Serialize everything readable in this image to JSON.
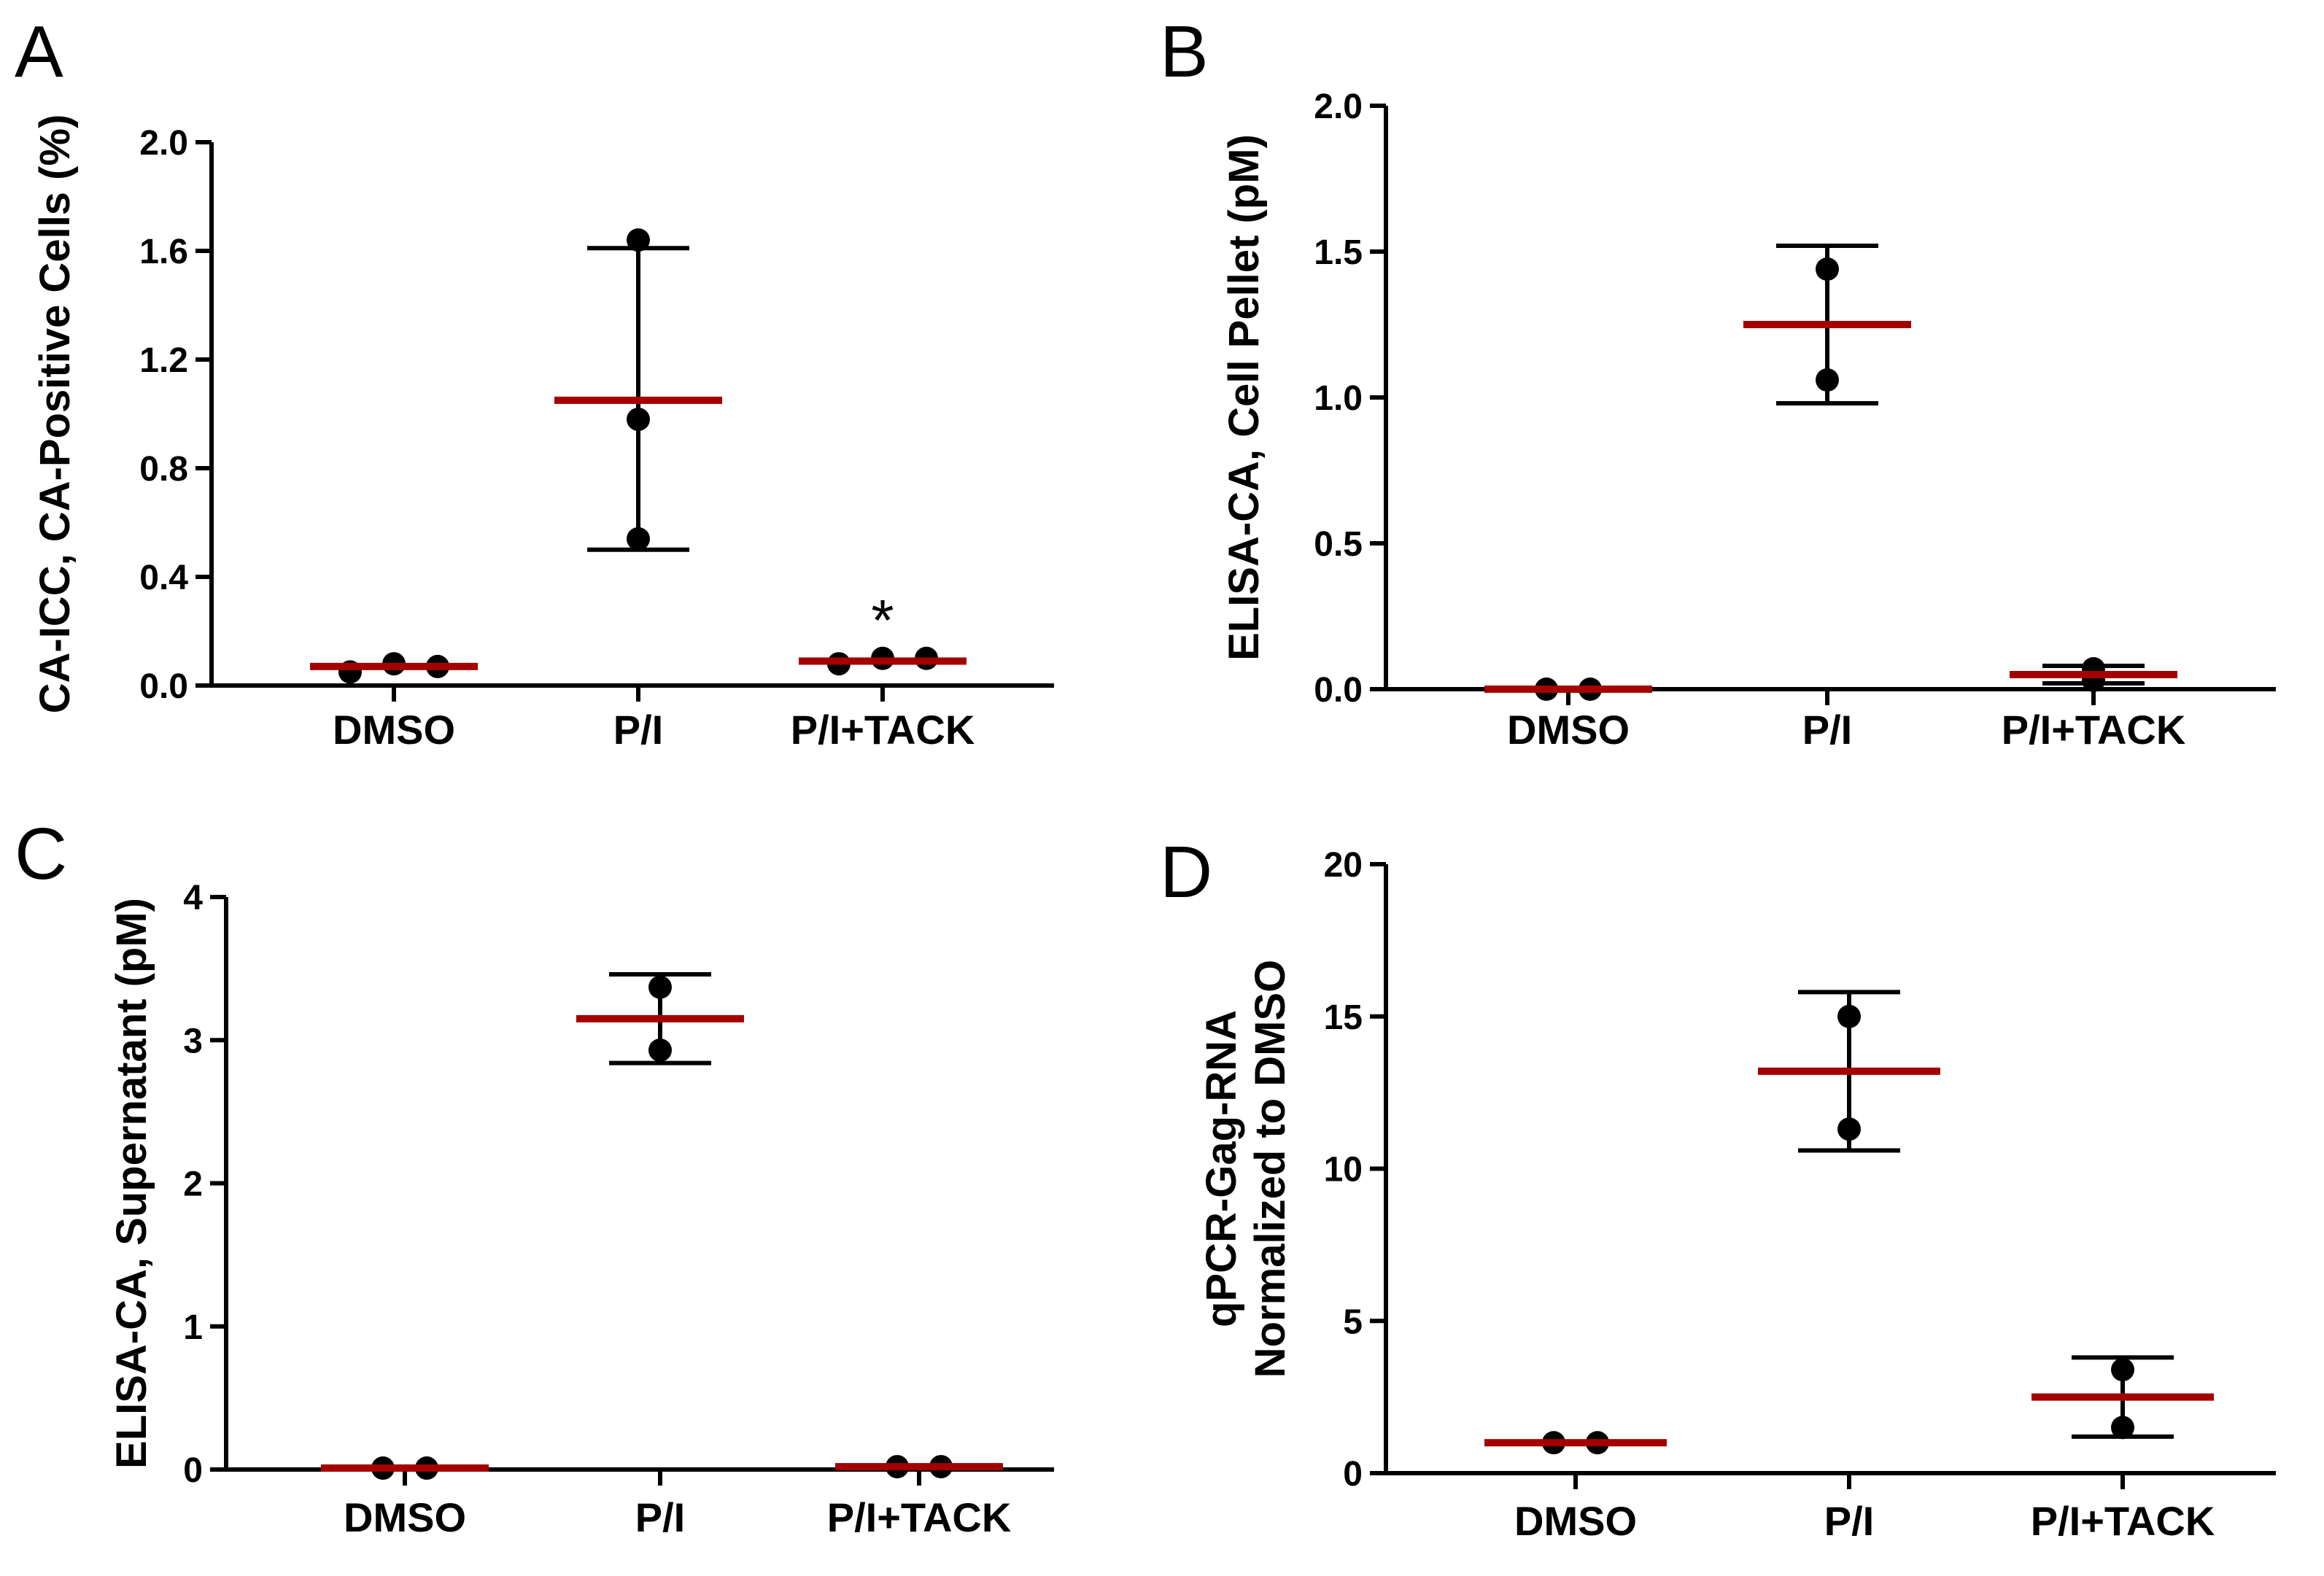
{
  "chart_data": [
    {
      "panel": "A",
      "type": "scatter",
      "ylabel": "CA-ICC, CA-Positive Cells (%)",
      "ylim": [
        0,
        2.0
      ],
      "yticks": [
        "0.0",
        "0.4",
        "0.8",
        "1.2",
        "1.6",
        "2.0"
      ],
      "categories": [
        "DMSO",
        "P/I",
        "P/I+TACK"
      ],
      "points": [
        [
          0.05,
          0.08,
          0.07
        ],
        [
          1.64,
          0.98,
          0.54
        ],
        [
          0.08,
          0.1,
          0.1
        ]
      ],
      "means": [
        0.07,
        1.05,
        0.09
      ],
      "err": [
        null,
        [
          0.5,
          1.61
        ],
        null
      ],
      "annotations": [
        {
          "category": "P/I+TACK",
          "text": "*"
        }
      ]
    },
    {
      "panel": "B",
      "type": "scatter",
      "ylabel": "ELISA-CA, Cell Pellet (pM)",
      "ylim": [
        0,
        2.0
      ],
      "yticks": [
        "0.0",
        "0.5",
        "1.0",
        "1.5",
        "2.0"
      ],
      "categories": [
        "DMSO",
        "P/I",
        "P/I+TACK"
      ],
      "points": [
        [
          0.0,
          0.0
        ],
        [
          1.44,
          1.06
        ],
        [
          0.03,
          0.07
        ]
      ],
      "means": [
        0.0,
        1.25,
        0.05
      ],
      "err": [
        null,
        [
          0.98,
          1.52
        ],
        [
          0.02,
          0.08
        ]
      ],
      "annotations": []
    },
    {
      "panel": "C",
      "type": "scatter",
      "ylabel": "ELISA-CA, Supernatant (pM)",
      "ylim": [
        0,
        4
      ],
      "yticks": [
        "0",
        "1",
        "2",
        "3",
        "4"
      ],
      "categories": [
        "DMSO",
        "P/I",
        "P/I+TACK"
      ],
      "points": [
        [
          0.01,
          0.01
        ],
        [
          3.37,
          2.93
        ],
        [
          0.02,
          0.02
        ]
      ],
      "means": [
        0.01,
        3.15,
        0.02
      ],
      "err": [
        null,
        [
          2.84,
          3.46
        ],
        null
      ],
      "annotations": []
    },
    {
      "panel": "D",
      "type": "scatter",
      "ylabel": [
        "qPCR-Gag-RNA",
        "Normalized to DMSO"
      ],
      "ylim": [
        0,
        20
      ],
      "yticks": [
        "0",
        "5",
        "10",
        "15",
        "20"
      ],
      "categories": [
        "DMSO",
        "P/I",
        "P/I+TACK"
      ],
      "points": [
        [
          1.0,
          1.0
        ],
        [
          15.0,
          11.3
        ],
        [
          3.4,
          1.5
        ]
      ],
      "means": [
        1.0,
        13.2,
        2.5
      ],
      "err": [
        null,
        [
          10.6,
          15.8
        ],
        [
          1.2,
          3.8
        ]
      ],
      "annotations": []
    }
  ]
}
